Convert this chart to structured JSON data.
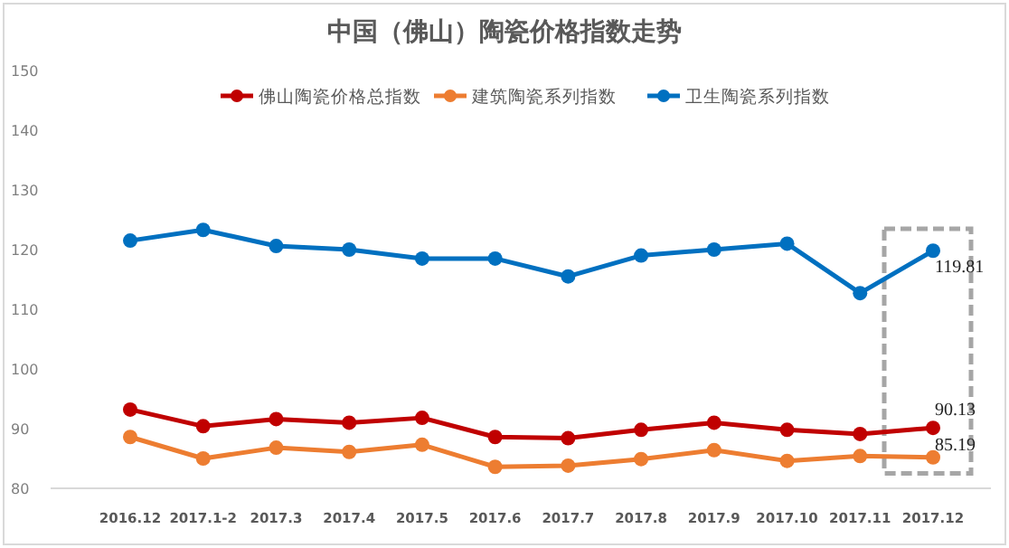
{
  "chart_data": {
    "type": "line",
    "title": "中国（佛山）陶瓷价格指数走势",
    "categories": [
      "2016.12",
      "2017.1-2",
      "2017.3",
      "2017.4",
      "2017.5",
      "2017.6",
      "2017.7",
      "2017.8",
      "2017.9",
      "2017.10",
      "2017.11",
      "2017.12"
    ],
    "series": [
      {
        "name": "佛山陶瓷价格总指数",
        "color": "#c00000",
        "values": [
          93.2,
          90.4,
          91.6,
          91,
          91.8,
          88.6,
          88.4,
          89.8,
          91,
          89.8,
          89.1,
          90.13
        ],
        "value_labels": [
          null,
          null,
          null,
          null,
          null,
          null,
          null,
          null,
          null,
          null,
          null,
          "90.13"
        ]
      },
      {
        "name": "建筑陶瓷系列指数",
        "color": "#ed7d31",
        "values": [
          88.6,
          85,
          86.8,
          86.1,
          87.3,
          83.6,
          83.8,
          84.9,
          86.4,
          84.6,
          85.4,
          85.19
        ],
        "value_labels": [
          null,
          null,
          null,
          null,
          null,
          null,
          null,
          null,
          null,
          null,
          null,
          "85.19"
        ]
      },
      {
        "name": "卫生陶瓷系列指数",
        "color": "#0070c0",
        "values": [
          121.5,
          123.3,
          120.6,
          120,
          118.5,
          118.5,
          115.5,
          119,
          120,
          121,
          112.7,
          119.81
        ],
        "value_labels": [
          null,
          null,
          null,
          null,
          null,
          null,
          null,
          null,
          null,
          null,
          null,
          "119.81"
        ]
      }
    ],
    "ylim": [
      80,
      150
    ],
    "yticks": [
      80,
      90,
      100,
      110,
      120,
      130,
      140,
      150
    ],
    "grid": false,
    "legend": "top",
    "marker": "circle",
    "line_style": "solid"
  }
}
